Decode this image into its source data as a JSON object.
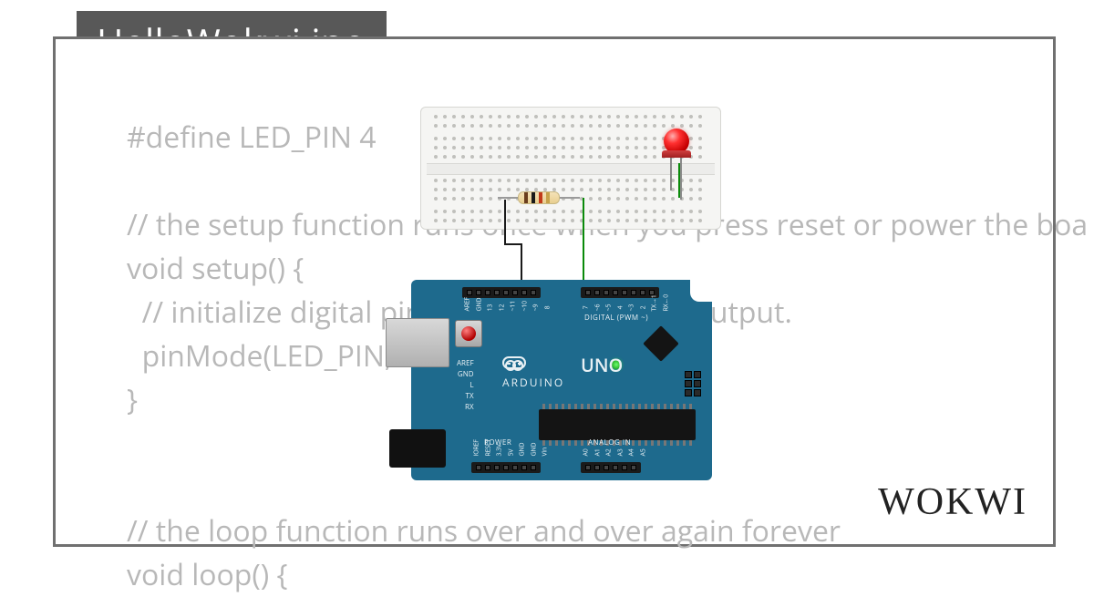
{
  "tab_title": "HelloWokwi.ino",
  "brand_logo_text": "WOKWI",
  "code_lines": [
    "#define LED_PIN 4",
    "",
    "// the setup function runs once when you press reset or power the boa",
    "void setup() {",
    "  // initialize digital pin LED_BUILTIN as an output.",
    "  pinMode(LED_PIN, OUTPUT);",
    "}",
    "",
    "",
    "// the loop function runs over and over again forever",
    "void loop() {"
  ],
  "colors": {
    "card_border": "#707070",
    "tab_bg": "#585858",
    "tab_fg": "#ffffff",
    "code_fg": "#b8b8b8",
    "arduino_pcb": "#1e6a8d",
    "arduino_silk": "#e8f0f4",
    "breadboard": "#f5f5f3",
    "wire_gnd": "#1a1a1a",
    "wire_signal": "#0a8a0a",
    "led_color": "#ff3030",
    "power_led": "#2aff2a"
  },
  "circuit": {
    "breadboard": {
      "type": "breadboard-mini",
      "columns": 30,
      "rail_rows": 2,
      "strip_rows": 3
    },
    "components": [
      {
        "type": "resistor",
        "orientation": "horizontal",
        "from": "breadboard",
        "to": "breadboard",
        "band_colors": [
          "#6b3e1e",
          "#1a1a1a",
          "#c23a1a",
          "#c7a24a"
        ]
      },
      {
        "type": "led",
        "color": "red",
        "from": "breadboard",
        "to": "breadboard"
      }
    ],
    "wires": [
      {
        "color": "black",
        "from": "resistor-left",
        "to": "uno GND"
      },
      {
        "color": "green",
        "from": "resistor-right",
        "to": "uno D4"
      },
      {
        "color": "green",
        "from": "led-anode",
        "to": "resistor-row"
      }
    ]
  },
  "arduino": {
    "board_name": "UNO",
    "brand": "ARDUINO",
    "side_labels": [
      "AREF",
      "GND",
      "L",
      "TX",
      "RX"
    ],
    "digital_section_label": "DIGITAL (PWM ~)",
    "power_section_label": "POWER",
    "analog_section_label": "ANALOG IN",
    "pins_digital_left": [
      "AREF",
      "GND",
      "13",
      "12",
      "~11",
      "~10",
      "~9",
      "8"
    ],
    "pins_digital_right": [
      "7",
      "~6",
      "~5",
      "4",
      "~3",
      "2",
      "TX→1",
      "RX←0"
    ],
    "pins_power": [
      "IOREF",
      "RESET",
      "3.3V",
      "5V",
      "GND",
      "GND",
      "Vin"
    ],
    "pins_analog": [
      "A0",
      "A1",
      "A2",
      "A3",
      "A4",
      "A5"
    ]
  }
}
